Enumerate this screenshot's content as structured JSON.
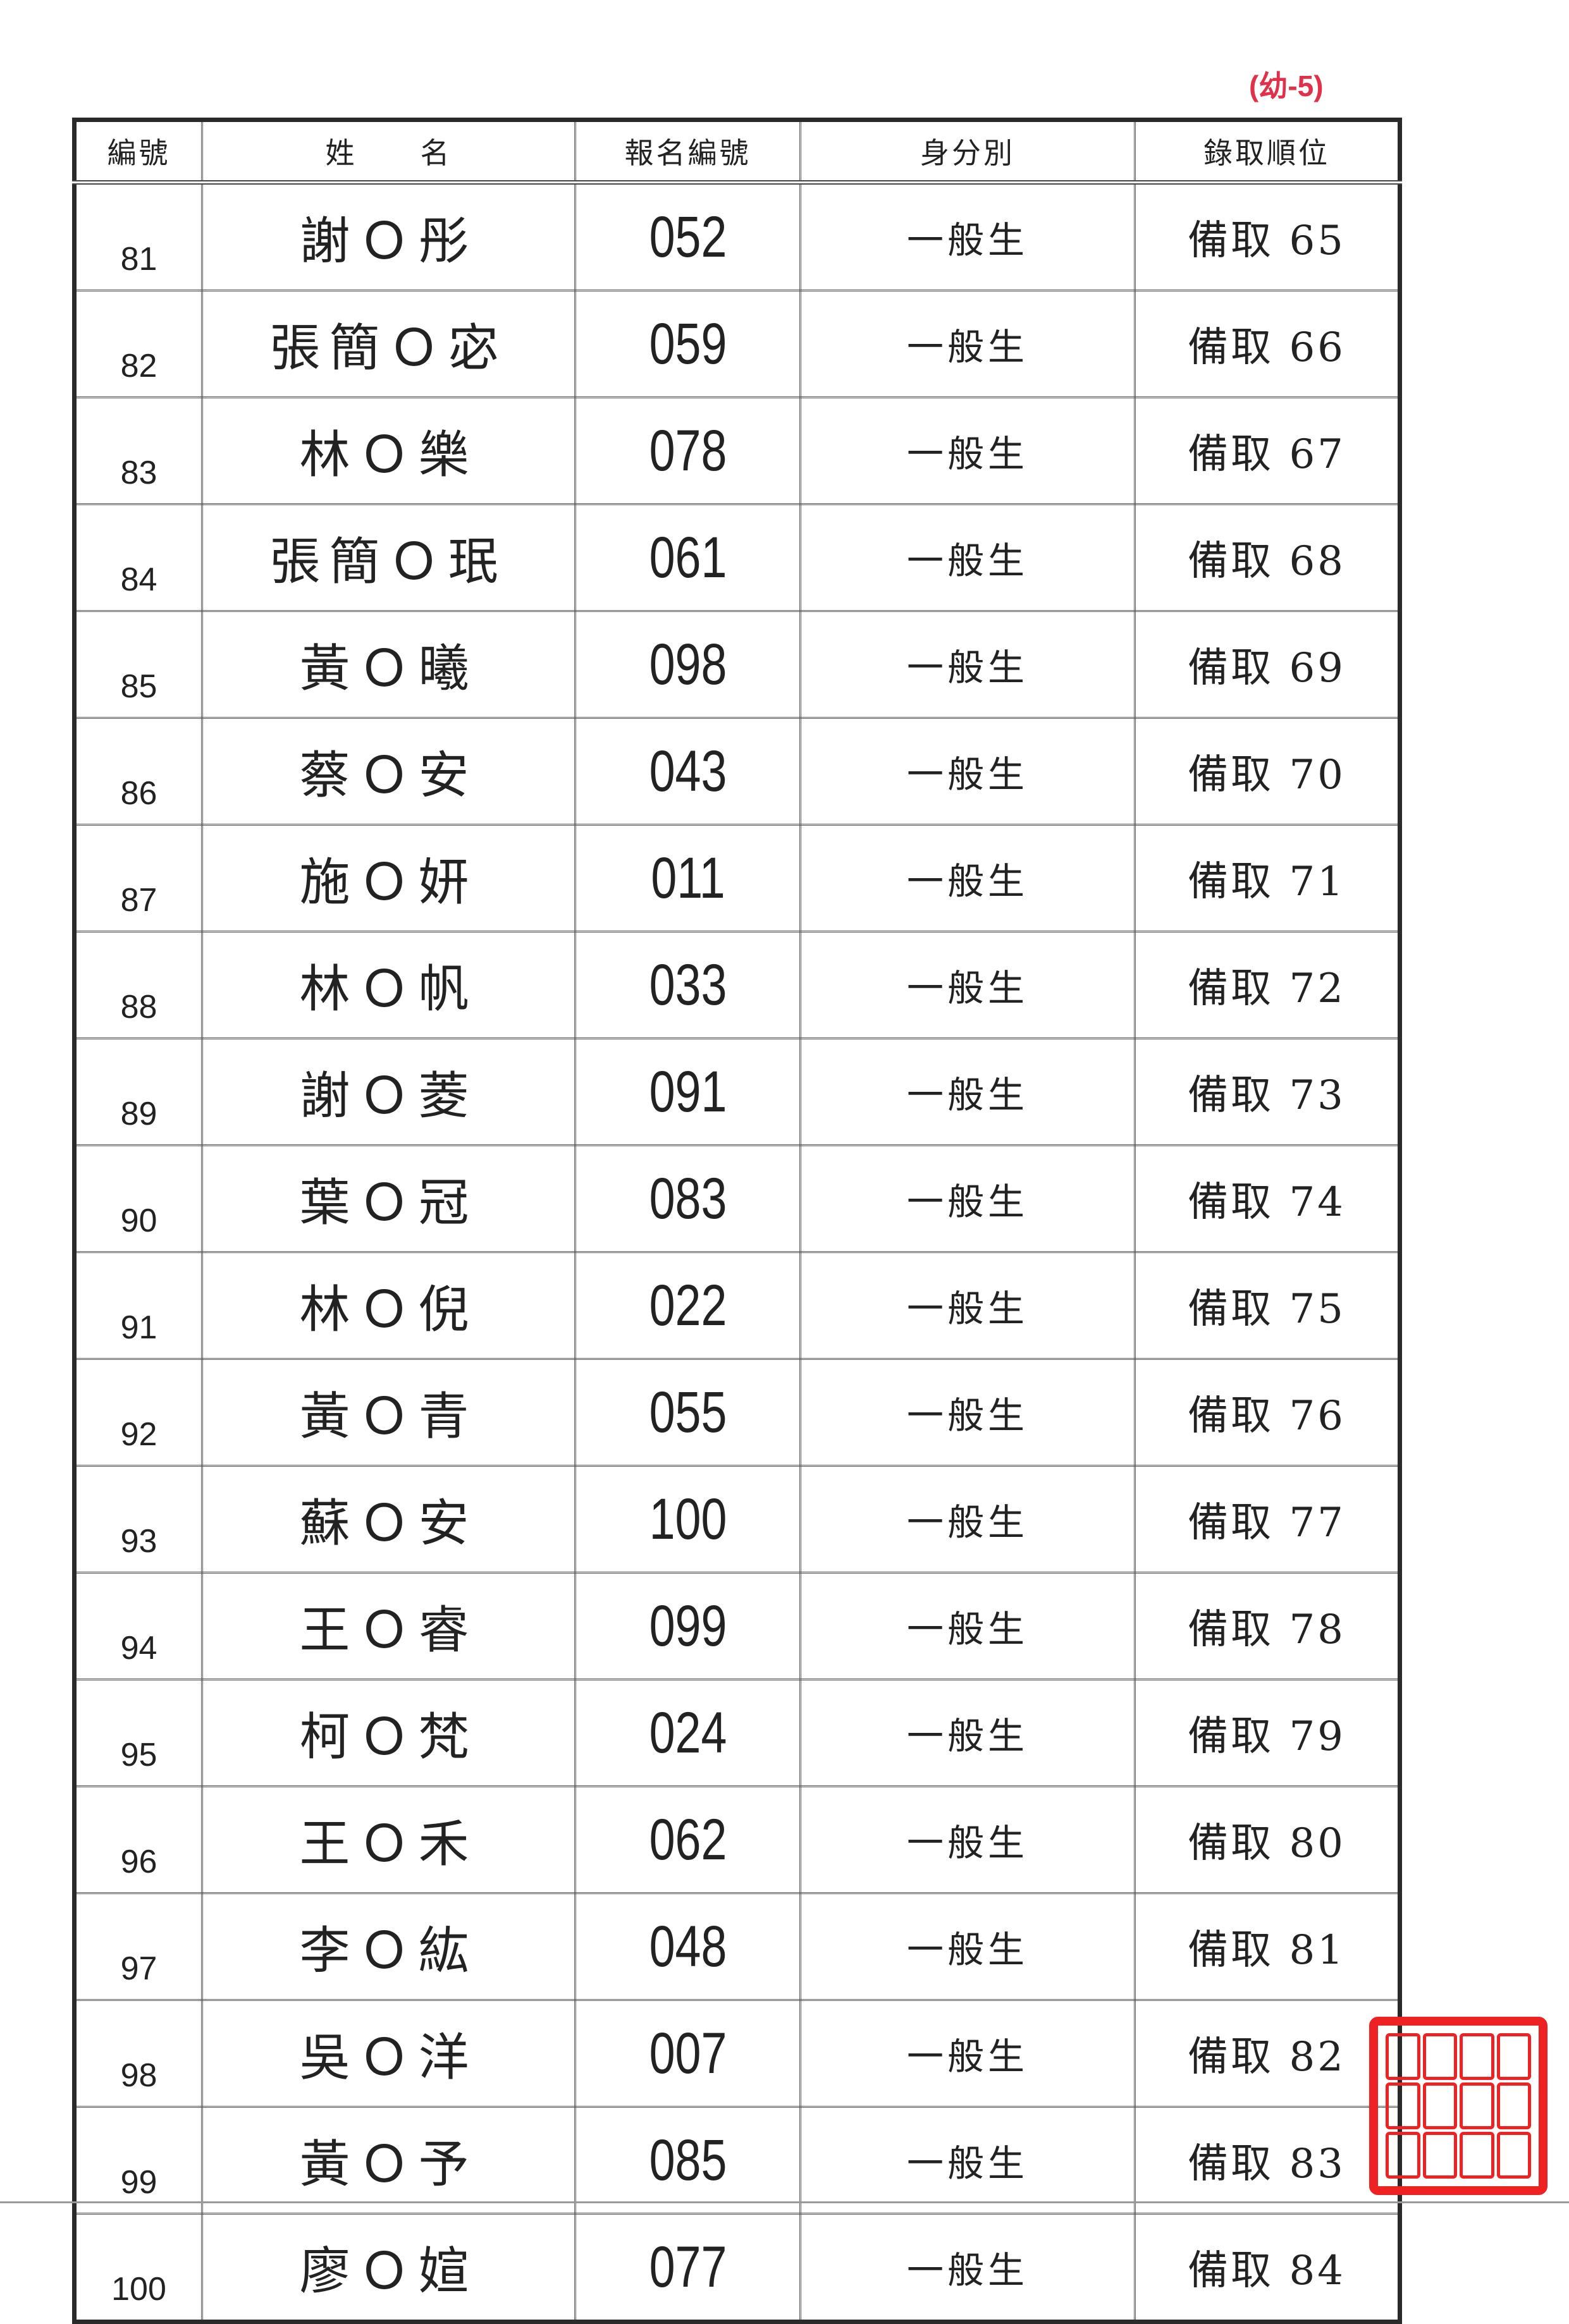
{
  "page_label": "(幼-5)",
  "table": {
    "headers": [
      "編號",
      "姓　　名",
      "報名編號",
      "身分別",
      "錄取順位"
    ],
    "rows": [
      {
        "no": "81",
        "name": "謝Ｏ彤",
        "reg": "052",
        "type": "一般生",
        "rank": "備取 65"
      },
      {
        "no": "82",
        "name": "張簡Ｏ宓",
        "reg": "059",
        "type": "一般生",
        "rank": "備取 66"
      },
      {
        "no": "83",
        "name": "林Ｏ樂",
        "reg": "078",
        "type": "一般生",
        "rank": "備取 67"
      },
      {
        "no": "84",
        "name": "張簡Ｏ珉",
        "reg": "061",
        "type": "一般生",
        "rank": "備取 68"
      },
      {
        "no": "85",
        "name": "黃Ｏ曦",
        "reg": "098",
        "type": "一般生",
        "rank": "備取 69"
      },
      {
        "no": "86",
        "name": "蔡Ｏ安",
        "reg": "043",
        "type": "一般生",
        "rank": "備取 70"
      },
      {
        "no": "87",
        "name": "施Ｏ妍",
        "reg": "011",
        "type": "一般生",
        "rank": "備取 71"
      },
      {
        "no": "88",
        "name": "林Ｏ帆",
        "reg": "033",
        "type": "一般生",
        "rank": "備取 72"
      },
      {
        "no": "89",
        "name": "謝Ｏ菱",
        "reg": "091",
        "type": "一般生",
        "rank": "備取 73"
      },
      {
        "no": "90",
        "name": "葉Ｏ冠",
        "reg": "083",
        "type": "一般生",
        "rank": "備取 74"
      },
      {
        "no": "91",
        "name": "林Ｏ倪",
        "reg": "022",
        "type": "一般生",
        "rank": "備取 75"
      },
      {
        "no": "92",
        "name": "黃Ｏ青",
        "reg": "055",
        "type": "一般生",
        "rank": "備取 76"
      },
      {
        "no": "93",
        "name": "蘇Ｏ安",
        "reg": "100",
        "type": "一般生",
        "rank": "備取 77"
      },
      {
        "no": "94",
        "name": "王Ｏ睿",
        "reg": "099",
        "type": "一般生",
        "rank": "備取 78"
      },
      {
        "no": "95",
        "name": "柯Ｏ梵",
        "reg": "024",
        "type": "一般生",
        "rank": "備取 79"
      },
      {
        "no": "96",
        "name": "王Ｏ禾",
        "reg": "062",
        "type": "一般生",
        "rank": "備取 80"
      },
      {
        "no": "97",
        "name": "李Ｏ紘",
        "reg": "048",
        "type": "一般生",
        "rank": "備取 81"
      },
      {
        "no": "98",
        "name": "吳Ｏ洋",
        "reg": "007",
        "type": "一般生",
        "rank": "備取 82"
      },
      {
        "no": "99",
        "name": "黃Ｏ予",
        "reg": "085",
        "type": "一般生",
        "rank": "備取 83"
      },
      {
        "no": "100",
        "name": "廖Ｏ媗",
        "reg": "077",
        "type": "一般生",
        "rank": "備取 84"
      }
    ]
  },
  "stamp": {
    "color": "#e22222"
  },
  "colors": {
    "page_label": "#e0304a",
    "text": "#222222"
  }
}
